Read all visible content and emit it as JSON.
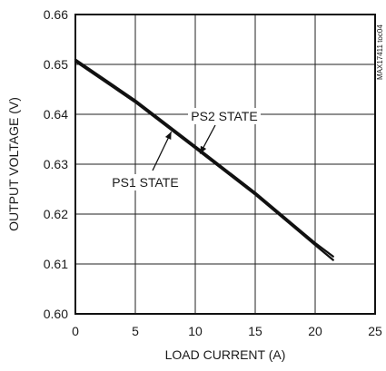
{
  "chart_data": {
    "type": "line",
    "xlabel": "LOAD CURRENT (A)",
    "ylabel": "OUTPUT VOLTAGE (V)",
    "xlim": [
      0,
      25
    ],
    "ylim": [
      0.6,
      0.66
    ],
    "x_ticks": [
      "0",
      "5",
      "10",
      "15",
      "20",
      "25"
    ],
    "y_ticks": [
      "0.60",
      "0.61",
      "0.62",
      "0.63",
      "0.64",
      "0.65",
      "0.66"
    ],
    "grid": true,
    "series": [
      {
        "name": "PS1 STATE",
        "x": [
          0,
          5,
          10,
          15,
          20,
          21.5
        ],
        "y": [
          0.651,
          0.6428,
          0.6336,
          0.6243,
          0.6142,
          0.6115
        ]
      },
      {
        "name": "PS2 STATE",
        "x": [
          0,
          5,
          10,
          15,
          20,
          21.5
        ],
        "y": [
          0.6506,
          0.6424,
          0.6332,
          0.6239,
          0.6138,
          0.6108
        ]
      }
    ],
    "annotations": [
      {
        "text": "PS2 STATE",
        "points_to": {
          "x": 10.4,
          "y": 0.6321
        }
      },
      {
        "text": "PS1 STATE",
        "points_to": {
          "x": 8.0,
          "y": 0.6365
        }
      }
    ],
    "figure_code": "MAX17411 toc04",
    "colors": {
      "line": "#111111",
      "grid": "#222222",
      "background": "#ffffff"
    }
  }
}
